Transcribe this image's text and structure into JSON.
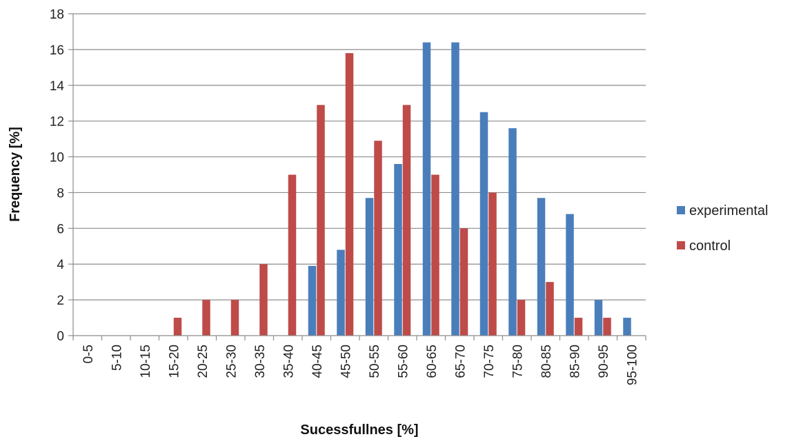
{
  "chart_data": {
    "type": "bar",
    "title": "",
    "xlabel": "Sucessfullnes [%]",
    "ylabel": "Frequency [%]",
    "ylim": [
      0,
      18
    ],
    "yticks": [
      "0",
      "2",
      "4",
      "6",
      "8",
      "10",
      "12",
      "14",
      "16",
      "18"
    ],
    "grid": true,
    "legend_position": "right",
    "categories": [
      "0-5",
      "5-10",
      "10-15",
      "15-20",
      "20-25",
      "25-30",
      "30-35",
      "35-40",
      "40-45",
      "45-50",
      "50-55",
      "55-60",
      "60-65",
      "65-70",
      "70-75",
      "75-80",
      "80-85",
      "85-90",
      "90-95",
      "95-100"
    ],
    "series": [
      {
        "name": "experimental",
        "color": "#4a7ebb",
        "values": [
          0,
          0,
          0,
          0,
          0,
          0,
          0,
          0,
          3.9,
          4.8,
          7.7,
          9.6,
          16.4,
          16.4,
          12.5,
          11.6,
          7.7,
          6.8,
          2.0,
          1.0
        ]
      },
      {
        "name": "control",
        "color": "#be4b48",
        "values": [
          0,
          0,
          0,
          1.0,
          2.0,
          2.0,
          4.0,
          9.0,
          12.9,
          15.8,
          10.9,
          12.9,
          9.0,
          6.0,
          8.0,
          2.0,
          3.0,
          1.0,
          1.0,
          0
        ]
      }
    ]
  }
}
